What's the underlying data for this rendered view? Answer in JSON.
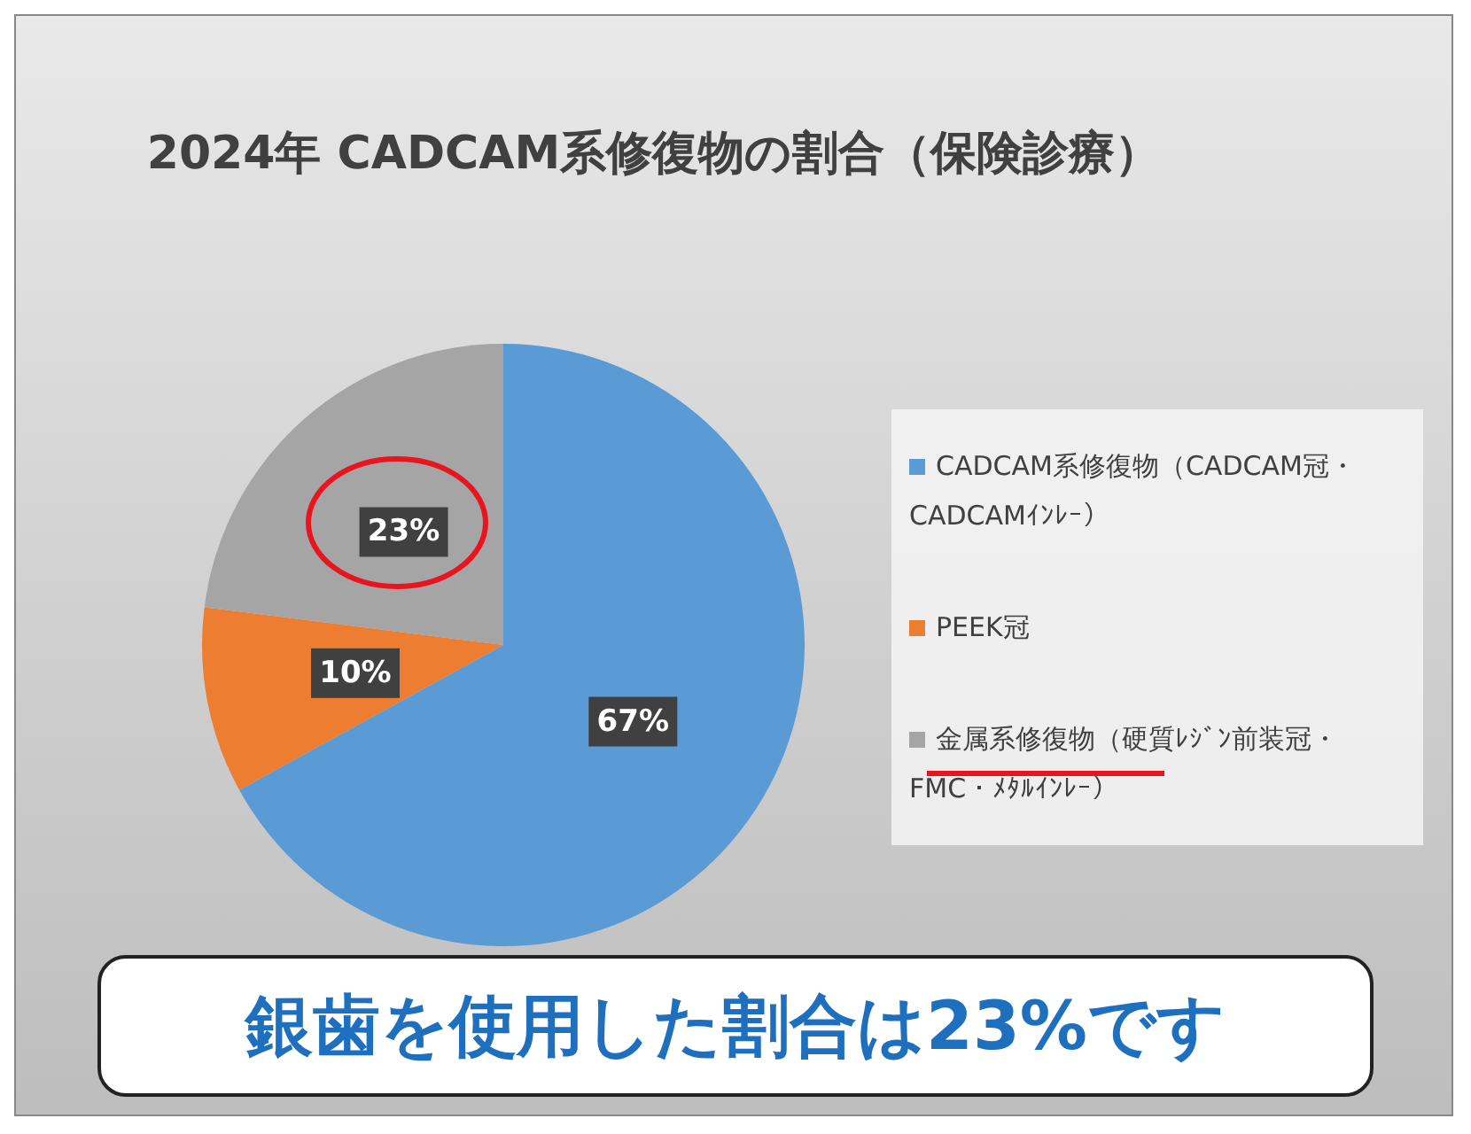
{
  "chart_data": {
    "type": "pie",
    "title": "2024年 CADCAM系修復物の割合（保険診療）",
    "categories": [
      "CADCAM系修復物（CADCAM冠・CADCAMｲﾝﾚｰ）",
      "PEEK冠",
      "金属系修復物（硬質ﾚｼﾞﾝ前装冠・FMC・ﾒﾀﾙｲﾝﾚｰ）"
    ],
    "values": [
      67,
      10,
      23
    ],
    "colors": [
      "#5b9bd5",
      "#ed7d31",
      "#a5a5a5"
    ],
    "value_labels": [
      "67%",
      "10%",
      "23%"
    ],
    "legend": "right",
    "annotations": [
      "銀歯を使用した割合は23%です"
    ]
  }
}
